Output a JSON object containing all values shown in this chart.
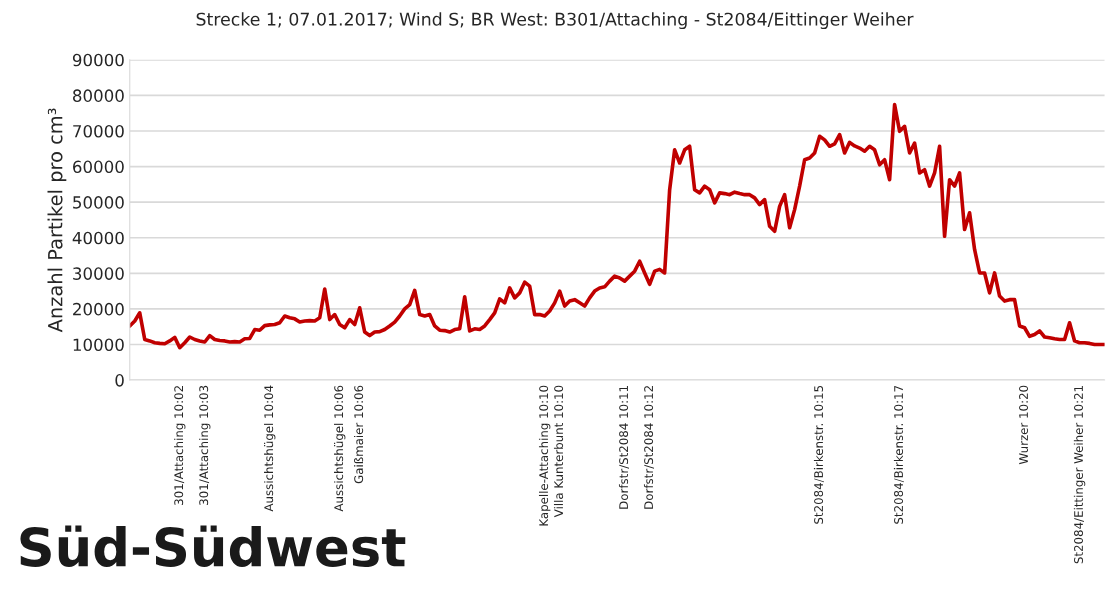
{
  "chart_data": {
    "type": "line",
    "title": "Strecke 1; 07.01.2017; Wind S; BR West: B301/Attaching - St2084/Eittinger Weiher",
    "ylabel": "Anzahl Partikel pro cm³",
    "annotations": [
      "Süd-Südwest"
    ],
    "categories": [
      null,
      null,
      null,
      null,
      null,
      null,
      null,
      null,
      null,
      null,
      "301/Attaching 10:02",
      null,
      null,
      null,
      null,
      "301/Attaching 10:03",
      null,
      null,
      null,
      null,
      null,
      null,
      null,
      null,
      null,
      null,
      null,
      null,
      "Aussichtshügel 10:04",
      null,
      null,
      null,
      null,
      null,
      null,
      null,
      null,
      null,
      null,
      null,
      null,
      null,
      "Aussichtshügel 10:06",
      null,
      null,
      null,
      "Gaißmaier 10:06",
      null,
      null,
      null,
      null,
      null,
      null,
      null,
      null,
      null,
      null,
      null,
      null,
      null,
      null,
      null,
      null,
      null,
      null,
      null,
      null,
      null,
      null,
      null,
      null,
      null,
      null,
      null,
      null,
      null,
      null,
      null,
      null,
      null,
      null,
      null,
      null,
      "Kapelle-Attaching 10:10",
      null,
      null,
      "Villa Kunterbunt 10:10",
      null,
      null,
      null,
      null,
      null,
      null,
      null,
      null,
      null,
      null,
      null,
      null,
      "Dorfstr/St2084 10:11",
      null,
      null,
      null,
      null,
      "Dorfstr/St2084 10:12",
      null,
      null,
      null,
      null,
      null,
      null,
      null,
      null,
      null,
      null,
      null,
      null,
      null,
      null,
      null,
      null,
      null,
      null,
      null,
      null,
      null,
      null,
      null,
      null,
      null,
      null,
      null,
      null,
      null,
      null,
      null,
      null,
      null,
      "St2084/Birkenstr. 10:15",
      null,
      null,
      null,
      null,
      null,
      null,
      null,
      null,
      null,
      null,
      null,
      null,
      null,
      null,
      null,
      "St2084/Birkenstr. 10:17",
      null,
      null,
      null,
      null,
      null,
      null,
      null,
      null,
      null,
      null,
      null,
      null,
      null,
      null,
      null,
      null,
      null,
      null,
      null,
      null,
      null,
      null,
      null,
      null,
      "Wurzer 10:20",
      null,
      null,
      null,
      null,
      null,
      null,
      null,
      null,
      null,
      null,
      "St2084/Eittinger Weiher 10:21",
      null,
      null,
      null,
      null,
      null
    ],
    "series": [
      {
        "color": "#c00000",
        "values": [
          15200,
          16600,
          18900,
          11400,
          11000,
          10500,
          10300,
          10200,
          11000,
          12000,
          9100,
          10500,
          12100,
          11400,
          11000,
          10700,
          12500,
          11400,
          11100,
          11000,
          10700,
          10800,
          10700,
          11600,
          11700,
          14200,
          14000,
          15300,
          15500,
          15600,
          16100,
          18000,
          17500,
          17200,
          16300,
          16600,
          16700,
          16600,
          17500,
          25600,
          17000,
          18400,
          15600,
          14700,
          17000,
          15600,
          20300,
          13500,
          12500,
          13500,
          13600,
          14200,
          15200,
          16300,
          18000,
          20000,
          21200,
          25200,
          18400,
          18000,
          18400,
          15200,
          14000,
          13900,
          13500,
          14200,
          14400,
          23400,
          13800,
          14400,
          14200,
          15200,
          17000,
          18900,
          22800,
          21700,
          25900,
          23100,
          24500,
          27500,
          26400,
          18400,
          18400,
          18000,
          19400,
          21700,
          25000,
          20800,
          22200,
          22600,
          21700,
          20800,
          23100,
          25000,
          25900,
          26200,
          27800,
          29200,
          28700,
          27800,
          29200,
          30600,
          33400,
          30100,
          26900,
          30600,
          31100,
          30100,
          53500,
          64700,
          61000,
          64700,
          65700,
          53500,
          52600,
          54500,
          53500,
          49800,
          52600,
          52400,
          52100,
          52800,
          52400,
          52100,
          52100,
          51200,
          49300,
          50700,
          43200,
          41800,
          48800,
          52100,
          42800,
          47900,
          54500,
          61900,
          62400,
          63800,
          68500,
          67500,
          65700,
          66400,
          69000,
          63800,
          66800,
          65800,
          65200,
          64300,
          65700,
          64700,
          60500,
          61900,
          56300,
          77400,
          69900,
          71300,
          63800,
          66600,
          58200,
          59100,
          54500,
          58200,
          65700,
          40400,
          56300,
          54500,
          58200,
          42300,
          47000,
          36700,
          30100,
          30100,
          24500,
          30100,
          23600,
          22200,
          22600,
          22600,
          15200,
          14700,
          12300,
          12800,
          13800,
          12100,
          11900,
          11600,
          11400,
          11400,
          16100,
          11000,
          10500,
          10500,
          10300,
          10000,
          10000,
          10000
        ]
      }
    ],
    "ylim": [
      0,
      90000
    ],
    "yticks": [
      0,
      10000,
      20000,
      30000,
      40000,
      50000,
      60000,
      70000,
      80000,
      90000
    ],
    "grid": "y",
    "legend": false
  }
}
